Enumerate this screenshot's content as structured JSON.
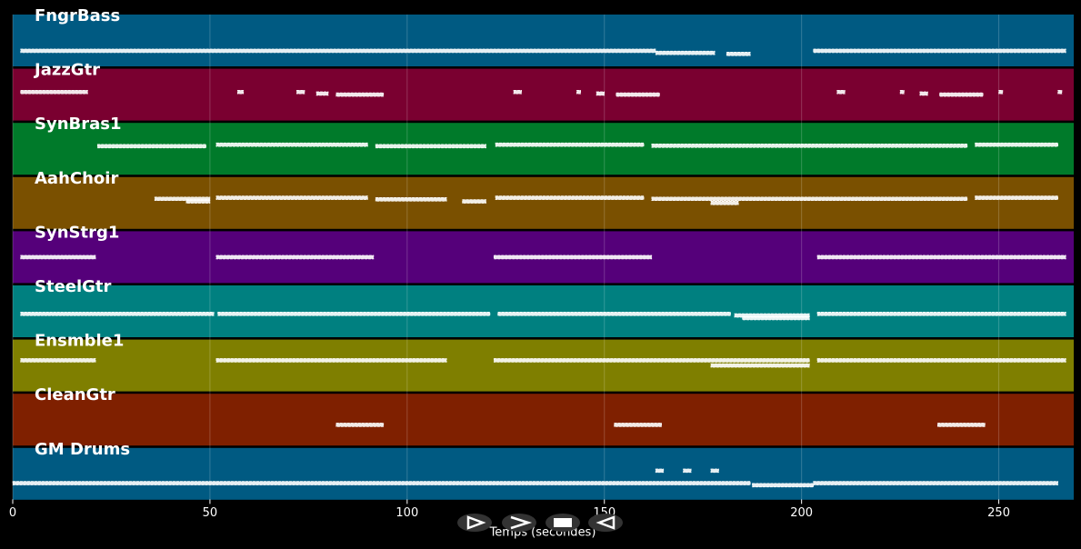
{
  "chart_data": {
    "type": "pianoroll",
    "xlabel": "Temps (secondes)",
    "xlim": [
      0,
      269
    ],
    "xticks": [
      0,
      50,
      100,
      150,
      200,
      250
    ],
    "grid": true,
    "tracks": [
      {
        "name": "FngrBass",
        "color": "#005a82",
        "notes": [
          [
            2,
            163,
            70
          ],
          [
            163,
            178,
            74
          ],
          [
            181,
            187,
            76
          ],
          [
            203,
            267,
            70
          ]
        ]
      },
      {
        "name": "JazzGtr",
        "color": "#7a0030",
        "notes": [
          [
            2,
            19,
            45
          ],
          [
            57,
            58.5,
            45
          ],
          [
            72,
            74,
            45
          ],
          [
            77,
            80,
            48
          ],
          [
            82,
            94,
            50
          ],
          [
            127,
            129,
            45
          ],
          [
            143,
            144,
            45
          ],
          [
            148,
            150,
            48
          ],
          [
            153,
            164,
            50
          ],
          [
            209,
            211,
            45
          ],
          [
            225,
            226,
            45
          ],
          [
            230,
            232,
            48
          ],
          [
            235,
            246,
            50
          ],
          [
            250,
            251,
            45
          ],
          [
            265,
            266,
            45
          ]
        ]
      },
      {
        "name": "SynBras1",
        "color": "#007a2a",
        "notes": [
          [
            21.5,
            49,
            45
          ],
          [
            51.6,
            90,
            42
          ],
          [
            92,
            120,
            45
          ],
          [
            122.4,
            160,
            42
          ],
          [
            162,
            242,
            44
          ],
          [
            244,
            265,
            42
          ]
        ]
      },
      {
        "name": "AahChoir",
        "color": "#7a5000",
        "notes": [
          [
            36,
            50,
            42
          ],
          [
            44,
            50,
            47
          ],
          [
            51.6,
            90,
            40
          ],
          [
            92,
            110,
            43
          ],
          [
            114,
            120,
            47
          ],
          [
            122.4,
            160,
            40
          ],
          [
            162,
            242,
            42
          ],
          [
            177,
            184,
            50
          ],
          [
            244,
            265,
            40
          ]
        ]
      },
      {
        "name": "SynStrg1",
        "color": "#55007a",
        "notes": [
          [
            2,
            21,
            50
          ],
          [
            51.6,
            91.5,
            50
          ],
          [
            122,
            162,
            50
          ],
          [
            204,
            267,
            50
          ]
        ]
      },
      {
        "name": "SteelGtr",
        "color": "#008080",
        "notes": [
          [
            2,
            51,
            55
          ],
          [
            52,
            121,
            55
          ],
          [
            123,
            182,
            55
          ],
          [
            183,
            202,
            58
          ],
          [
            185,
            202,
            63
          ],
          [
            204,
            267,
            55
          ]
        ]
      },
      {
        "name": "Ensmble1",
        "color": "#7f7f00",
        "notes": [
          [
            2,
            21,
            40
          ],
          [
            51.6,
            110,
            40
          ],
          [
            122,
            202,
            40
          ],
          [
            177,
            202,
            50
          ],
          [
            204,
            267,
            40
          ]
        ]
      },
      {
        "name": "CleanGtr",
        "color": "#7f2000",
        "notes": [
          [
            82,
            94,
            60
          ],
          [
            152.5,
            164.5,
            60
          ],
          [
            234.5,
            246.5,
            60
          ]
        ]
      },
      {
        "name": "GM Drums",
        "color": "#005a82",
        "notes": [
          [
            0,
            187,
            68
          ],
          [
            163,
            165,
            44
          ],
          [
            170,
            172,
            44
          ],
          [
            177,
            179,
            44
          ],
          [
            187.5,
            203,
            72
          ],
          [
            203,
            265,
            68
          ]
        ]
      }
    ]
  }
}
